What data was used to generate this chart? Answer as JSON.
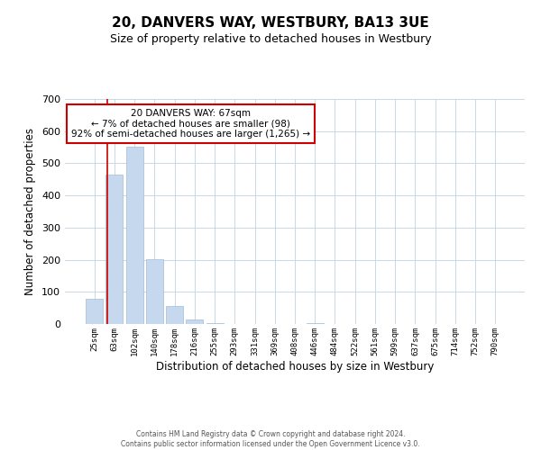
{
  "title": "20, DANVERS WAY, WESTBURY, BA13 3UE",
  "subtitle": "Size of property relative to detached houses in Westbury",
  "xlabel": "Distribution of detached houses by size in Westbury",
  "ylabel": "Number of detached properties",
  "bar_labels": [
    "25sqm",
    "63sqm",
    "102sqm",
    "140sqm",
    "178sqm",
    "216sqm",
    "255sqm",
    "293sqm",
    "331sqm",
    "369sqm",
    "408sqm",
    "446sqm",
    "484sqm",
    "522sqm",
    "561sqm",
    "599sqm",
    "637sqm",
    "675sqm",
    "714sqm",
    "752sqm",
    "790sqm"
  ],
  "bar_values": [
    78,
    465,
    551,
    202,
    57,
    14,
    2,
    0,
    0,
    0,
    0,
    4,
    0,
    0,
    0,
    0,
    0,
    0,
    0,
    0,
    0
  ],
  "bar_color": "#c5d8ed",
  "bar_edge_color": "#a0bcd8",
  "annotation_box_text": "20 DANVERS WAY: 67sqm\n← 7% of detached houses are smaller (98)\n92% of semi-detached houses are larger (1,265) →",
  "annotation_box_color": "#ffffff",
  "annotation_box_edge_color": "#cc0000",
  "annotation_line_color": "#cc0000",
  "ylim": [
    0,
    700
  ],
  "yticks": [
    0,
    100,
    200,
    300,
    400,
    500,
    600,
    700
  ],
  "background_color": "#ffffff",
  "grid_color": "#c8d8e8",
  "footer_text": "Contains HM Land Registry data © Crown copyright and database right 2024.\nContains public sector information licensed under the Open Government Licence v3.0.",
  "title_fontsize": 11,
  "subtitle_fontsize": 9,
  "xlabel_fontsize": 8.5,
  "ylabel_fontsize": 8.5
}
